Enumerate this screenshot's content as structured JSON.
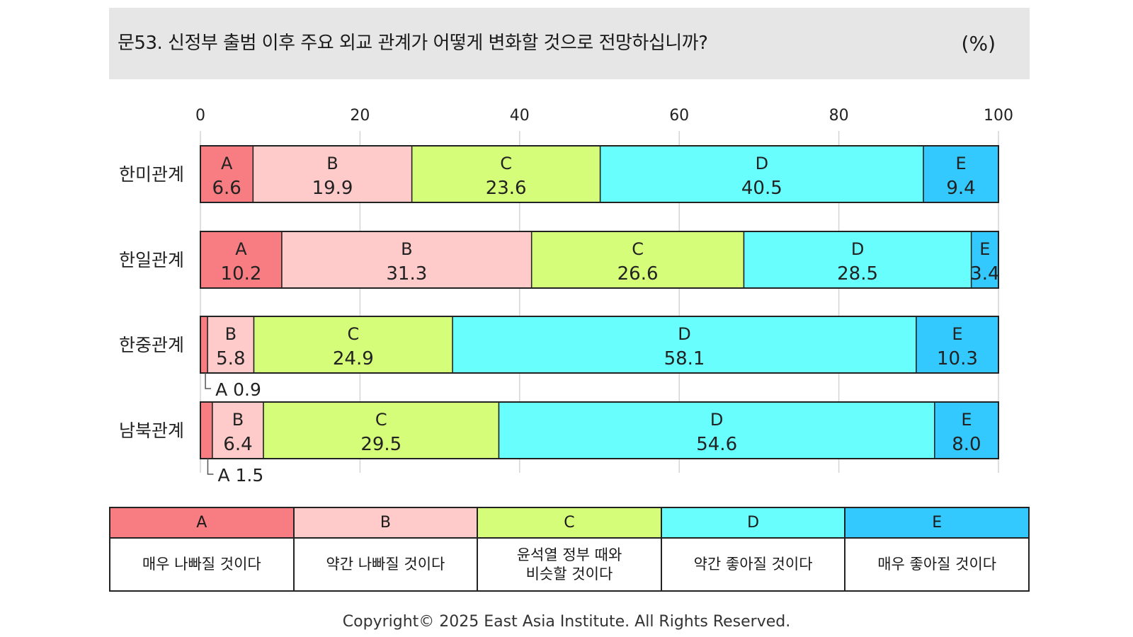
{
  "header": {
    "question": "문53. 신정부 출범 이후 주요 외교 관계가 어떻게 변화할 것으로 전망하십니까?",
    "unit": "(%)"
  },
  "chart_data": {
    "type": "bar",
    "orientation": "horizontal",
    "stacked": true,
    "xlim": [
      0,
      100
    ],
    "xticks": [
      0,
      20,
      40,
      60,
      80,
      100
    ],
    "grid": true,
    "categories": [
      "한미관계",
      "한일관계",
      "한중관계",
      "남북관계"
    ],
    "series": [
      {
        "name": "A",
        "color": "#f87d82",
        "values": [
          6.6,
          10.2,
          0.9,
          1.5
        ]
      },
      {
        "name": "B",
        "color": "#fecaca",
        "values": [
          19.9,
          31.3,
          5.8,
          6.4
        ]
      },
      {
        "name": "C",
        "color": "#d6fd7a",
        "values": [
          23.6,
          26.6,
          24.9,
          29.5
        ]
      },
      {
        "name": "D",
        "color": "#68fefe",
        "values": [
          40.5,
          28.5,
          58.1,
          54.6
        ]
      },
      {
        "name": "E",
        "color": "#33c9fe",
        "values": [
          9.4,
          3.4,
          10.3,
          8.0
        ]
      }
    ],
    "external_labels": [
      "A 0.9",
      "A 1.5"
    ]
  },
  "legend": [
    {
      "key": "A",
      "desc": "매우 나빠질 것이다"
    },
    {
      "key": "B",
      "desc": "약간 나빠질 것이다"
    },
    {
      "key": "C",
      "desc": "윤석열 정부 때와\n비슷할 것이다"
    },
    {
      "key": "D",
      "desc": "약간 좋아질 것이다"
    },
    {
      "key": "E",
      "desc": "매우 좋아질 것이다"
    }
  ],
  "footer": {
    "copyright": "Copyright© 2025 East Asia Institute. All Rights Reserved."
  }
}
